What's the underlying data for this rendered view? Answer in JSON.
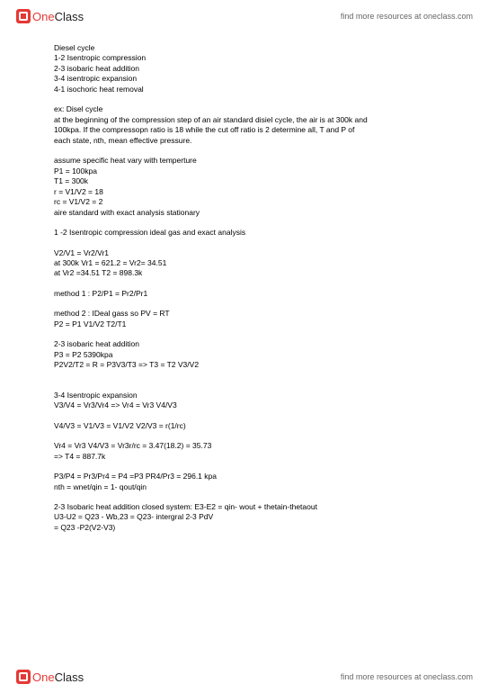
{
  "branding": {
    "logo_one": "One",
    "logo_class": "Class",
    "tagline": "find more resources at oneclass.com"
  },
  "notes": {
    "title": "Diesel cycle",
    "steps": [
      "1-2 Isentropic compression",
      "2-3 isobaric heat addition",
      "3-4 isentropic expansion",
      "4-1 isochoric heat removal"
    ],
    "ex_label": "ex: Disel cycle",
    "ex_desc1": "at the beginning of the compression step of an air standard disiel cycle, the air is at 300k and",
    "ex_desc2": "100kpa. If the compressopn ratio is 18 while the cut off ratio is 2 determine all, T and P of",
    "ex_desc3": "each state, nth, mean effective pressure.",
    "assume": "assume specific heat vary with temperture",
    "p1": "P1 = 100kpa",
    "t1": "T1 = 300k",
    "r": "r = V1/V2 = 18",
    "rc": "rc = V1/V2 = 2",
    "aire": "aire standard  with exact analysis stationary",
    "sec1": "1 -2 Isentropic compression  ideal gas and exact analysis",
    "v2v1": "V2/V1 = Vr2/Vr1",
    "at300": "at 300k Vr1 = 621.2 = Vr2= 34.51",
    "atvr2": "at Vr2 =34.51 T2 = 898.3k",
    "method1": "method 1 : P2/P1 = Pr2/Pr1",
    "method2a": "method 2 : IDeal gass so PV = RT",
    "method2b": "P2 = P1 V1/V2 T2/T1",
    "sec23a": "2-3 isobaric heat addition",
    "sec23b": "P3 = P2 5390kpa",
    "sec23c": "P2V2/T2 = R = P3V3/T3 => T3 = T2 V3/V2",
    "sec34": "3-4 Isentropic expansion",
    "sec34a": "V3/V4 = Vr3/Vr4 => Vr4 = Vr3 V4/V3",
    "sec34b": "V4/V3 = V1/V3 = V1/V2 V2/V3 = r(1/rc)",
    "sec34c": "Vr4 = Vr3 V4/V3 = Vr3r/rc = 3.47(18.2) = 35.73",
    "sec34d": "=> T4 = 887.7k",
    "p3p4": "P3/P4 = Pr3/Pr4 = P4 =P3 PR4/Pr3 = 296.1 kpa",
    "nth": "nth = wnet/qin = 1- qout/qin",
    "closed1": "2-3 Isobaric heat addition closed system: E3-E2 = qin- wout + thetain-thetaout",
    "closed2": "U3-U2 = Q23 - Wb,23 = Q23- intergral 2-3 PdV",
    "closed3": "= Q23 -P2(V2-V3)"
  },
  "style": {
    "bg": "#ffffff",
    "text_color": "#000000",
    "accent": "#e53935",
    "font_size_body": 8.5,
    "font_size_tagline": 9,
    "font_size_logo": 13
  }
}
